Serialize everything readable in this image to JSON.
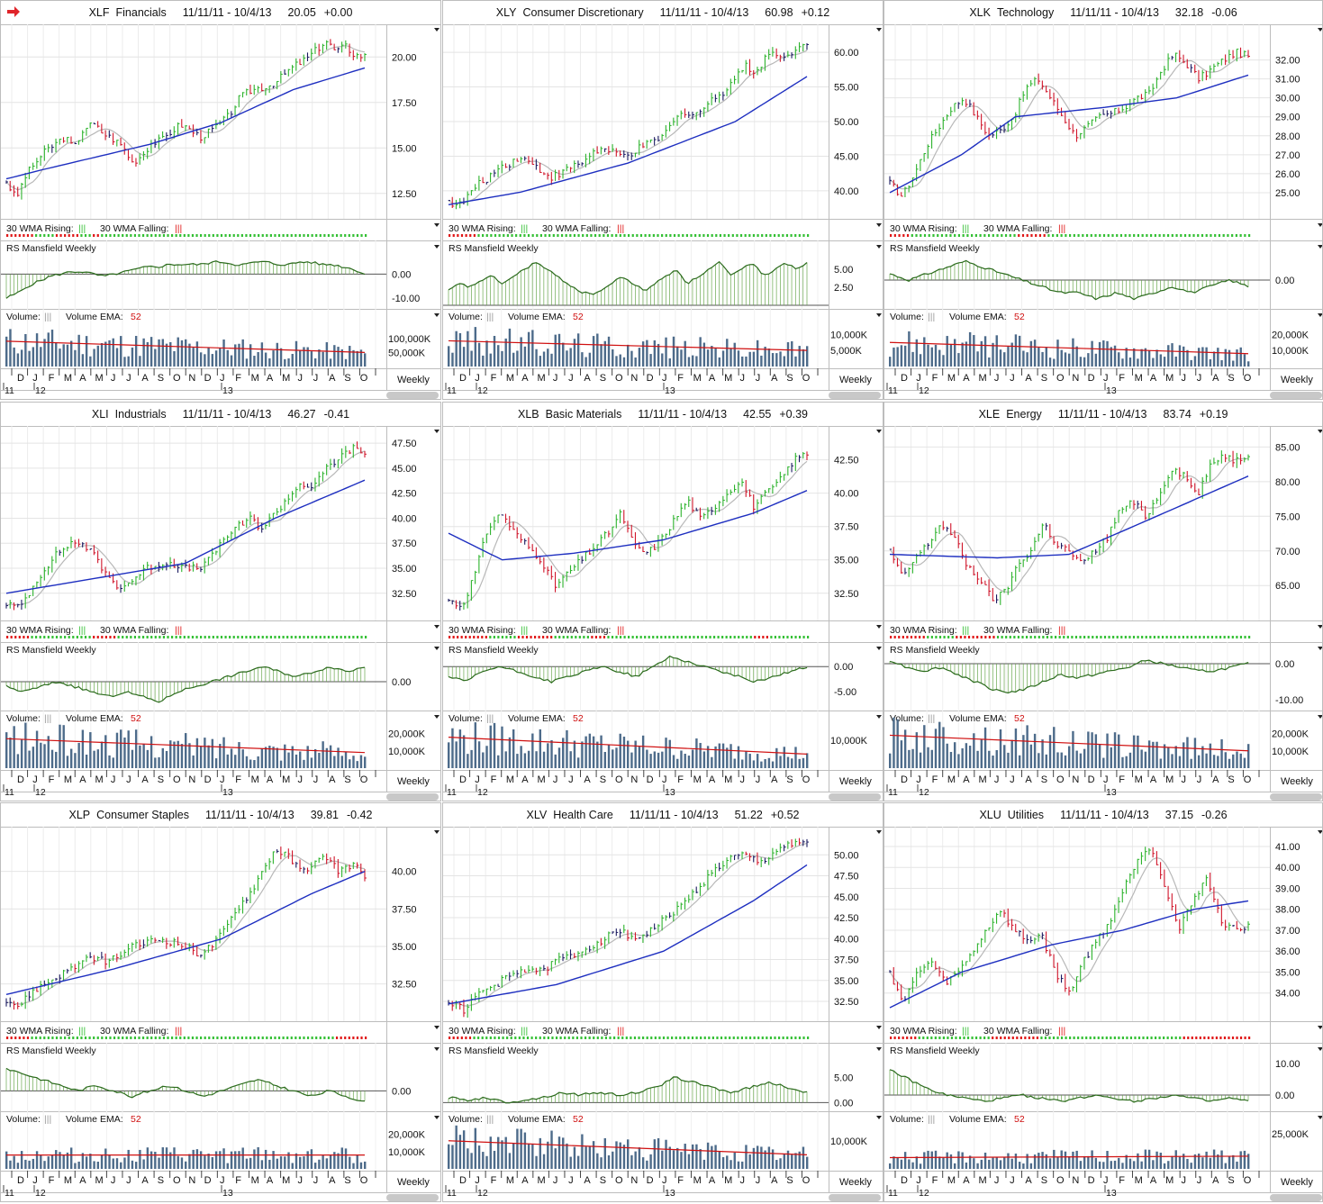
{
  "colors": {
    "price_up": "#2db32d",
    "price_down": "#d0152a",
    "price_neutral": "#1a1a60",
    "wma30": "#1e2fc0",
    "sma10": "#b8b8b8",
    "rs": "#2b6b1c",
    "volume_bar": "#4d6b8a",
    "volume_ema": "#d01010",
    "rising": "#35c035",
    "falling": "#e01818"
  },
  "labels": {
    "wma_rising": "30 WMA Rising:",
    "wma_falling": "30 WMA Falling:",
    "marker": "|||",
    "rs": "RS Mansfield Weekly",
    "volume": "Volume:",
    "volume_ema": "Volume EMA:",
    "ema_period": "52",
    "weekly": "Weekly",
    "months": [
      "D",
      "J",
      "F",
      "M",
      "A",
      "M",
      "J",
      "J",
      "A",
      "S",
      "O",
      "N",
      "D",
      "J",
      "F",
      "M",
      "A",
      "M",
      "J",
      "J",
      "A",
      "S",
      "O"
    ],
    "years": [
      "11",
      "12",
      "13"
    ]
  },
  "chart_data": [
    {
      "type": "line",
      "ticker": "XLF",
      "name": "Financials",
      "range": "11/11/11 - 10/4/13",
      "last": "20.05",
      "change": "+0.00",
      "price": [
        13.2,
        12.2,
        13.5,
        14.2,
        14.8,
        15.2,
        15.6,
        15.0,
        16.1,
        16.3,
        15.8,
        15.5,
        15.1,
        14.2,
        14.6,
        15.3,
        15.4,
        15.9,
        16.3,
        16.0,
        15.6,
        15.9,
        16.3,
        16.8,
        17.7,
        18.1,
        18.3,
        18.4,
        18.7,
        19.2,
        19.6,
        19.9,
        20.4,
        20.9,
        20.3,
        20.6,
        20.1,
        20.05
      ],
      "price_ticks": [
        "20.00",
        "17.50",
        "15.00",
        "12.50"
      ],
      "price_tick_values": [
        20,
        17.5,
        15,
        12.5
      ],
      "price_range": [
        11.5,
        21.4
      ],
      "rs": [
        -10,
        -8,
        -5,
        -3,
        -1,
        0,
        1,
        1,
        0,
        -1,
        0,
        1,
        2,
        3,
        3,
        4,
        4,
        4,
        4,
        5,
        5,
        4,
        4,
        5,
        5,
        4,
        4,
        5,
        5,
        4,
        4,
        3,
        2,
        0
      ],
      "rs_ticks": [
        "0.00",
        "-10.00"
      ],
      "rs_tick_values": [
        0,
        -10
      ],
      "rs_range": [
        -13,
        8
      ],
      "vol_ticks": [
        "100,000K",
        "50,000K"
      ],
      "vol_tick_values": [
        100000,
        50000
      ],
      "vol_range": [
        0,
        160000
      ],
      "vol_level": [
        90000,
        50000
      ],
      "wma": [
        {
          "x": 0,
          "y": 13.3
        },
        {
          "x": 0.1,
          "y": 13.8
        },
        {
          "x": 0.4,
          "y": 15.2
        },
        {
          "x": 0.6,
          "y": 16.4
        },
        {
          "x": 0.8,
          "y": 18.2
        },
        {
          "x": 1,
          "y": 19.4
        }
      ],
      "trend": "RRRRRRRGGGGGRRRRRRGGGRRGGGGGGGGGGGGGGGGGGGGGGGGGGGGGGGGGGGGGGGGGGGGGGGGGGGGGGGGGGGGGGGGG"
    },
    {
      "type": "line",
      "ticker": "XLY",
      "name": "Consumer Discretionary",
      "range": "11/11/11 - 10/4/13",
      "last": "60.98",
      "change": "+0.12",
      "price": [
        38.5,
        37.8,
        39.5,
        41.0,
        42.0,
        43.5,
        44.0,
        45.0,
        44.0,
        43.0,
        42.0,
        42.5,
        43.5,
        44.0,
        45.5,
        46.0,
        45.5,
        45.0,
        45.5,
        46.5,
        47.0,
        48.0,
        50.0,
        51.5,
        51.0,
        52.0,
        53.5,
        54.5,
        56.5,
        58.0,
        57.0,
        59.5,
        60.0,
        59.0,
        61.0,
        61.0
      ],
      "price_ticks": [
        "60.00",
        "55.00",
        "50.00",
        "45.00",
        "40.00"
      ],
      "price_tick_values": [
        60,
        55,
        50,
        45,
        40
      ],
      "price_range": [
        37,
        63
      ],
      "rs": [
        2,
        3,
        2.5,
        3.5,
        4,
        3,
        4,
        5,
        6,
        5,
        4,
        3,
        2,
        1.5,
        2,
        3,
        4,
        3,
        2,
        3,
        4,
        5,
        3,
        4,
        5,
        6,
        4,
        5,
        6,
        4,
        5,
        6,
        5,
        6
      ],
      "rs_ticks": [
        "5.00",
        "2.50"
      ],
      "rs_tick_values": [
        5,
        2.5
      ],
      "rs_range": [
        0,
        7
      ],
      "vol_ticks": [
        "10,000K",
        "5,000K"
      ],
      "vol_tick_values": [
        10000,
        5000
      ],
      "vol_range": [
        0,
        14000
      ],
      "vol_level": [
        8000,
        5000
      ],
      "wma": [
        {
          "x": 0,
          "y": 38.0
        },
        {
          "x": 0.2,
          "y": 39.8
        },
        {
          "x": 0.5,
          "y": 44.0
        },
        {
          "x": 0.8,
          "y": 50.0
        },
        {
          "x": 1,
          "y": 56.5
        }
      ],
      "trend": "RRRRRRRGGGGGGGGGGGGGGGGGGGGGGGGGGGGGGGGGGGGGGGGGGGGGGGGGGGGGGGGGGGGGGGGGGGGGGGGGGGGGGGG"
    },
    {
      "type": "line",
      "ticker": "XLK",
      "name": "Technology",
      "range": "11/11/11 - 10/4/13",
      "last": "32.18",
      "change": "-0.06",
      "price": [
        25.5,
        24.8,
        26.0,
        27.5,
        28.5,
        29.5,
        30.0,
        29.0,
        28.0,
        28.3,
        29.0,
        30.5,
        31.0,
        30.0,
        29.0,
        28.0,
        28.5,
        29.0,
        29.2,
        29.5,
        30.0,
        30.2,
        31.5,
        32.3,
        31.8,
        31.0,
        31.5,
        32.0,
        32.4,
        32.2
      ],
      "price_ticks": [
        "32.00",
        "31.00",
        "30.00",
        "29.00",
        "28.00",
        "27.00",
        "26.00",
        "25.00"
      ],
      "price_tick_values": [
        32,
        31,
        30,
        29,
        28,
        27,
        26,
        25
      ],
      "price_range": [
        24,
        33.5
      ],
      "rs": [
        1,
        0,
        1,
        2,
        3,
        2,
        1,
        0,
        -1,
        -2,
        -2,
        -3,
        -2,
        -3,
        -2,
        -1,
        -2,
        -1,
        0,
        -1
      ],
      "rs_ticks": [
        "0.00"
      ],
      "rs_tick_values": [
        0
      ],
      "rs_range": [
        -4,
        4
      ],
      "vol_ticks": [
        "20,000K",
        "10,000K"
      ],
      "vol_tick_values": [
        20000,
        10000
      ],
      "vol_range": [
        0,
        28000
      ],
      "vol_level": [
        15000,
        8000
      ],
      "wma": [
        {
          "x": 0,
          "y": 25.0
        },
        {
          "x": 0.2,
          "y": 27.0
        },
        {
          "x": 0.35,
          "y": 29.0
        },
        {
          "x": 0.6,
          "y": 29.5
        },
        {
          "x": 0.8,
          "y": 30.0
        },
        {
          "x": 1,
          "y": 31.2
        }
      ],
      "trend": "RRRRRGGGGGGGGGGGGGGGGGGGGGGGGGRRRRRRRGGGGGGGGGGGGGGGGGGGGGGGGGGGGGGGGGGGGGGGGGGGGGGGG"
    },
    {
      "type": "line",
      "ticker": "XLI",
      "name": "Industrials",
      "range": "11/11/11 - 10/4/13",
      "last": "46.27",
      "change": "-0.41",
      "price": [
        31.5,
        31.0,
        33.0,
        35.0,
        36.5,
        37.5,
        37.5,
        36.0,
        34.0,
        33.0,
        34.0,
        35.0,
        35.5,
        35.5,
        35.0,
        35.0,
        36.0,
        38.0,
        39.0,
        40.0,
        39.0,
        40.5,
        42.0,
        43.5,
        43.0,
        45.0,
        46.0,
        47.0,
        46.5
      ],
      "price_ticks": [
        "47.50",
        "45.00",
        "42.50",
        "40.00",
        "37.50",
        "35.00",
        "32.50"
      ],
      "price_tick_values": [
        47.5,
        45,
        42.5,
        40,
        37.5,
        35,
        32.5
      ],
      "price_range": [
        30.5,
        48.5
      ],
      "rs": [
        -1,
        -2,
        -1,
        0,
        -1,
        -2,
        -3,
        -2,
        -3,
        -4,
        -2,
        -1,
        0,
        1,
        2,
        3,
        2,
        1,
        2,
        3,
        2,
        3
      ],
      "rs_ticks": [
        "0.00"
      ],
      "rs_tick_values": [
        0
      ],
      "rs_range": [
        -5,
        5
      ],
      "vol_ticks": [
        "20,000K",
        "10,000K"
      ],
      "vol_tick_values": [
        20000,
        10000
      ],
      "vol_range": [
        0,
        26000
      ],
      "vol_level": [
        17000,
        9000
      ],
      "wma": [
        {
          "x": 0,
          "y": 32.5
        },
        {
          "x": 0.25,
          "y": 34.0
        },
        {
          "x": 0.5,
          "y": 35.5
        },
        {
          "x": 0.75,
          "y": 40.0
        },
        {
          "x": 1,
          "y": 43.8
        }
      ],
      "trend": "RRRRRRGGGGGGGGGGGGGGGRRRRRRGGGGGGGGGGGGGGGGGGGGGGGGGGGGGGGGGGGGGGGGGGGGGGGGGGGGGGGGGGGGG"
    },
    {
      "type": "line",
      "ticker": "XLB",
      "name": "Basic Materials",
      "range": "11/11/11 - 10/4/13",
      "last": "42.55",
      "change": "+0.39",
      "price": [
        32.0,
        31.5,
        34.0,
        37.5,
        38.5,
        37.0,
        36.0,
        35.0,
        33.0,
        34.0,
        35.0,
        36.0,
        37.0,
        38.5,
        36.0,
        35.5,
        36.5,
        38.0,
        39.5,
        38.0,
        39.0,
        40.0,
        41.0,
        39.0,
        40.0,
        41.0,
        42.5,
        43.0
      ],
      "price_ticks": [
        "42.50",
        "40.00",
        "37.50",
        "35.00",
        "32.50"
      ],
      "price_tick_values": [
        42.5,
        40,
        37.5,
        35,
        32.5
      ],
      "price_range": [
        31,
        44.5
      ],
      "rs": [
        -2,
        -3,
        -1,
        0,
        -1,
        -2,
        -3,
        -2,
        -1,
        0,
        -1,
        -2,
        0,
        2,
        1,
        0,
        -1,
        -2,
        -3,
        -2,
        -1,
        0
      ],
      "rs_ticks": [
        "0.00",
        "-5.00"
      ],
      "rs_tick_values": [
        0,
        -5
      ],
      "rs_range": [
        -8,
        2
      ],
      "vol_ticks": [
        "10,000K"
      ],
      "vol_tick_values": [
        10000
      ],
      "vol_range": [
        0,
        16000
      ],
      "vol_level": [
        11000,
        5000
      ],
      "wma": [
        {
          "x": 0,
          "y": 37.0
        },
        {
          "x": 0.15,
          "y": 35.0
        },
        {
          "x": 0.35,
          "y": 35.5
        },
        {
          "x": 0.6,
          "y": 36.5
        },
        {
          "x": 0.85,
          "y": 38.5
        },
        {
          "x": 1,
          "y": 40.2
        }
      ],
      "trend": "RRRRRRRRRRGGGGGGGRRRRRRRRRGGGGGGGGGRRRRGGGGGGGGGGGGGGGGGGGGGGGGGGGGGGGGGGGGRRRRGGGGGGGGGG"
    },
    {
      "type": "line",
      "ticker": "XLE",
      "name": "Energy",
      "range": "11/11/11 - 10/4/13",
      "last": "83.74",
      "change": "+0.19",
      "price": [
        70.0,
        66.0,
        69.0,
        71.0,
        74.0,
        72.0,
        68.0,
        66.0,
        63.0,
        64.0,
        68.0,
        70.0,
        74.0,
        71.0,
        70.0,
        68.0,
        70.0,
        72.0,
        76.0,
        77.0,
        75.0,
        78.0,
        82.0,
        81.0,
        78.0,
        82.0,
        84.0,
        83.0,
        84.0
      ],
      "price_ticks": [
        "85.00",
        "80.00",
        "75.00",
        "70.00",
        "65.00"
      ],
      "price_tick_values": [
        85,
        80,
        75,
        70,
        65
      ],
      "price_range": [
        61,
        87
      ],
      "rs": [
        1,
        -1,
        -2,
        -1,
        -3,
        -5,
        -7,
        -8,
        -7,
        -5,
        -3,
        -4,
        -3,
        -2,
        -1,
        1,
        0,
        -1,
        -2,
        -2,
        -1,
        0
      ],
      "rs_ticks": [
        "0.00",
        "-10.00"
      ],
      "rs_tick_values": [
        0,
        -10
      ],
      "rs_range": [
        -12,
        2
      ],
      "vol_ticks": [
        "20,000K",
        "10,000K"
      ],
      "vol_tick_values": [
        20000,
        10000
      ],
      "vol_range": [
        0,
        26000
      ],
      "vol_level": [
        19000,
        10000
      ],
      "wma": [
        {
          "x": 0,
          "y": 69.5
        },
        {
          "x": 0.3,
          "y": 69.0
        },
        {
          "x": 0.5,
          "y": 69.5
        },
        {
          "x": 0.7,
          "y": 74.0
        },
        {
          "x": 1,
          "y": 80.8
        }
      ],
      "trend": "RRRRRRRRRGGGGGGGRRRRRRRRRRGGGGGGGGGGGGGGGGGGGGGGGGGGGGGGGGGGGGGGGGGGGGGGGGGGGGGGGGGGGGGG"
    },
    {
      "type": "line",
      "ticker": "XLP",
      "name": "Consumer Staples",
      "range": "11/11/11 - 10/4/13",
      "last": "39.81",
      "change": "-0.42",
      "price": [
        31.5,
        31.0,
        32.0,
        32.5,
        33.0,
        33.5,
        34.0,
        34.2,
        34.0,
        34.5,
        35.0,
        35.3,
        35.5,
        35.3,
        35.0,
        34.5,
        35.0,
        36.0,
        37.5,
        38.5,
        40.0,
        41.5,
        41.0,
        40.0,
        40.5,
        41.0,
        40.0,
        40.5,
        39.8
      ],
      "price_ticks": [
        "40.00",
        "37.50",
        "35.00",
        "32.50"
      ],
      "price_tick_values": [
        40,
        37.5,
        35,
        32.5
      ],
      "price_range": [
        30.5,
        42.5
      ],
      "rs": [
        4,
        3,
        2,
        1,
        0,
        1,
        0,
        -1,
        0,
        1,
        0,
        -1,
        0,
        1,
        2,
        1,
        0,
        -1,
        0,
        -1,
        -2
      ],
      "rs_ticks": [
        "0.00"
      ],
      "rs_tick_values": [
        0
      ],
      "rs_range": [
        -3,
        6
      ],
      "vol_ticks": [
        "20,000K",
        "10,000K"
      ],
      "vol_tick_values": [
        20000,
        10000
      ],
      "vol_range": [
        0,
        26000
      ],
      "vol_level": [
        8000,
        8000
      ],
      "wma": [
        {
          "x": 0,
          "y": 31.8
        },
        {
          "x": 0.3,
          "y": 33.5
        },
        {
          "x": 0.6,
          "y": 35.5
        },
        {
          "x": 0.85,
          "y": 38.5
        },
        {
          "x": 1,
          "y": 40.0
        }
      ],
      "trend": "RRRRRRGGGGGGGGGGGGGGGGGGGGGGGGGGGGGGGGGGGGGGGGGGGGGGGGGGGGGGGGGGGGGGGGGGGGGGGGGGRRRRRRRR"
    },
    {
      "type": "line",
      "ticker": "XLV",
      "name": "Health Care",
      "range": "11/11/11 - 10/4/13",
      "last": "51.22",
      "change": "+0.52",
      "price": [
        32.5,
        31.5,
        33.5,
        34.5,
        35.5,
        36.5,
        36.0,
        37.5,
        38.0,
        39.0,
        40.0,
        41.0,
        40.0,
        41.0,
        42.5,
        44.0,
        46.0,
        48.0,
        49.5,
        50.0,
        49.0,
        50.5,
        51.5,
        51.2
      ],
      "price_ticks": [
        "50.00",
        "47.50",
        "45.00",
        "42.50",
        "40.00",
        "37.50",
        "35.00",
        "32.50"
      ],
      "price_tick_values": [
        50,
        47.5,
        45,
        42.5,
        40,
        37.5,
        35,
        32.5
      ],
      "price_range": [
        31,
        52.5
      ],
      "rs": [
        1,
        0.5,
        1,
        0,
        0.5,
        1,
        2,
        1.5,
        2,
        1.5,
        2,
        3,
        5,
        4,
        3,
        2,
        3,
        4,
        3,
        2
      ],
      "rs_ticks": [
        "5.00",
        "0.00"
      ],
      "rs_tick_values": [
        5,
        0
      ],
      "rs_range": [
        -1,
        9
      ],
      "vol_ticks": [
        "10,000K"
      ],
      "vol_tick_values": [
        10000
      ],
      "vol_range": [
        0,
        16000
      ],
      "vol_level": [
        10000,
        5000
      ],
      "wma": [
        {
          "x": 0,
          "y": 32.2
        },
        {
          "x": 0.3,
          "y": 34.5
        },
        {
          "x": 0.6,
          "y": 38.5
        },
        {
          "x": 0.85,
          "y": 44.5
        },
        {
          "x": 1,
          "y": 48.8
        }
      ],
      "trend": "RRRRRRGGGGGGGGGGGGGGGGGGGGGGGGGGGGGGGGGGGGGGGGGGGGGGGGGGGGGGGGGGGGGGGGGGGGGGGGGGGGGGGGGG"
    },
    {
      "type": "line",
      "ticker": "XLU",
      "name": "Utilities",
      "range": "11/11/11 - 10/4/13",
      "last": "37.15",
      "change": "-0.26",
      "price": [
        35.0,
        33.5,
        35.0,
        35.5,
        34.5,
        35.0,
        36.0,
        37.0,
        38.0,
        37.0,
        36.5,
        36.8,
        35.0,
        34.0,
        35.5,
        36.5,
        37.5,
        39.0,
        40.5,
        41.0,
        39.0,
        37.0,
        38.5,
        39.5,
        37.5,
        37.0,
        37.2
      ],
      "price_ticks": [
        "41.00",
        "40.00",
        "39.00",
        "38.00",
        "37.00",
        "36.00",
        "35.00",
        "34.00"
      ],
      "price_tick_values": [
        41,
        40,
        39,
        38,
        37,
        36,
        35,
        34
      ],
      "price_range": [
        33,
        41.6
      ],
      "rs": [
        8,
        5,
        2,
        0,
        -1,
        -2,
        -1,
        0,
        -1,
        -2,
        -1,
        0,
        -1,
        -2,
        -1,
        0,
        -1,
        -2,
        -1,
        -2
      ],
      "rs_ticks": [
        "10.00",
        "0.00"
      ],
      "rs_tick_values": [
        10,
        0
      ],
      "rs_range": [
        -4,
        12
      ],
      "vol_ticks": [
        "25,000K"
      ],
      "vol_tick_values": [
        25000
      ],
      "vol_range": [
        0,
        32000
      ],
      "vol_level": [
        8000,
        9000
      ],
      "wma": [
        {
          "x": 0,
          "y": 33.3
        },
        {
          "x": 0.2,
          "y": 35.0
        },
        {
          "x": 0.45,
          "y": 36.3
        },
        {
          "x": 0.65,
          "y": 37.0
        },
        {
          "x": 0.85,
          "y": 38.0
        },
        {
          "x": 1,
          "y": 38.4
        }
      ],
      "trend": "RRRRRRRGGGGGGGGGGGGGGGGGGRRRRRRRRRRRRGGGGGGGGGGGGGGGGGGGGGGGGGGGGGGGGGGGRRRRRRRRRRRRRRRRR"
    }
  ]
}
